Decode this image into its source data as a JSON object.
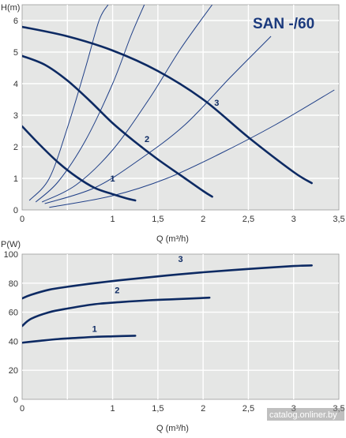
{
  "colors": {
    "plot_bg": "#e5e6e5",
    "grid": "#ffffff",
    "curve": "#0d2a63",
    "resistance": "#1f3f87",
    "text": "#333333",
    "title": "#1b3a7d"
  },
  "watermark": "catalog.onliner.by",
  "chart_data": [
    {
      "type": "line",
      "title": "SAN -/60",
      "ylabel": "H(m)",
      "xlabel": "Q (m³/h)",
      "xlim": [
        0,
        3.5
      ],
      "ylim": [
        0,
        6.5
      ],
      "xticks": [
        0,
        0.5,
        1,
        1.5,
        2,
        2.5,
        3,
        3.5
      ],
      "xtick_labels": [
        "0",
        "",
        "1",
        "1,5",
        "2",
        "2,5",
        "3",
        "3,5"
      ],
      "yticks": [
        0,
        1,
        2,
        3,
        4,
        5,
        6
      ],
      "ytick_labels": [
        "0",
        "1",
        "2",
        "3",
        "4",
        "5",
        "6"
      ],
      "grid": true,
      "series": [
        {
          "name": "1",
          "x": [
            0,
            0.2,
            0.4,
            0.6,
            0.8,
            1.0,
            1.15,
            1.25
          ],
          "y": [
            2.65,
            2.05,
            1.5,
            1.05,
            0.7,
            0.5,
            0.37,
            0.3
          ]
        },
        {
          "name": "2",
          "x": [
            0,
            0.25,
            0.5,
            0.75,
            1.0,
            1.25,
            1.5,
            1.75,
            2.0,
            2.1
          ],
          "y": [
            4.88,
            4.6,
            4.1,
            3.45,
            2.75,
            2.15,
            1.6,
            1.1,
            0.6,
            0.42
          ]
        },
        {
          "name": "3",
          "x": [
            0,
            0.5,
            1.0,
            1.5,
            2.0,
            2.5,
            3.0,
            3.2
          ],
          "y": [
            5.8,
            5.5,
            5.05,
            4.4,
            3.5,
            2.3,
            1.2,
            0.85
          ]
        }
      ],
      "resistance_curves": [
        {
          "x": [
            0.08,
            0.3,
            0.5,
            0.7,
            0.85,
            0.95
          ],
          "y": [
            0.3,
            1.0,
            2.6,
            4.5,
            6.0,
            6.5
          ]
        },
        {
          "x": [
            0.15,
            0.4,
            0.7,
            1.0,
            1.2,
            1.35
          ],
          "y": [
            0.25,
            0.9,
            2.2,
            4.0,
            5.5,
            6.5
          ]
        },
        {
          "x": [
            0.22,
            0.6,
            1.0,
            1.4,
            1.75,
            2.1
          ],
          "y": [
            0.25,
            0.8,
            1.9,
            3.5,
            5.1,
            6.5
          ]
        },
        {
          "x": [
            0.25,
            0.8,
            1.3,
            1.8,
            2.3,
            2.75
          ],
          "y": [
            0.2,
            0.7,
            1.6,
            2.7,
            4.2,
            5.5
          ]
        },
        {
          "x": [
            0.3,
            1.0,
            1.6,
            2.2,
            2.8,
            3.45
          ],
          "y": [
            0.08,
            0.45,
            1.0,
            1.8,
            2.7,
            3.8
          ]
        }
      ],
      "annotations": [
        {
          "text": "1",
          "x": 1.0,
          "y": 0.9
        },
        {
          "text": "2",
          "x": 1.38,
          "y": 2.15
        },
        {
          "text": "3",
          "x": 2.15,
          "y": 3.3
        }
      ]
    },
    {
      "type": "line",
      "ylabel": "P(W)",
      "xlabel": "Q (m³/h)",
      "xlim": [
        0,
        3.5
      ],
      "ylim": [
        0,
        100
      ],
      "xticks": [
        0,
        0.5,
        1,
        1.5,
        2,
        2.5,
        3,
        3.5
      ],
      "xtick_labels": [
        "0",
        "",
        "1",
        "1,5",
        "2",
        "2,5",
        "3",
        "3,5"
      ],
      "yticks": [
        0,
        20,
        40,
        60,
        80,
        100
      ],
      "ytick_labels": [
        "0",
        "20",
        "40",
        "60",
        "80",
        "100"
      ],
      "grid": true,
      "series": [
        {
          "name": "1",
          "x": [
            0,
            0.2,
            0.4,
            0.6,
            0.8,
            1.0,
            1.25
          ],
          "y": [
            39,
            40.3,
            41.5,
            42.3,
            43,
            43.4,
            43.8
          ]
        },
        {
          "name": "2",
          "x": [
            0,
            0.1,
            0.3,
            0.5,
            0.8,
            1.1,
            1.4,
            1.7,
            2.07
          ],
          "y": [
            50.5,
            55.5,
            60,
            62.5,
            65.5,
            67,
            68.2,
            69,
            70
          ]
        },
        {
          "name": "3",
          "x": [
            0,
            0.1,
            0.3,
            0.5,
            0.8,
            1.2,
            1.6,
            2.0,
            2.5,
            3.0,
            3.2
          ],
          "y": [
            69.5,
            72,
            75.5,
            77.5,
            80,
            82.8,
            85.3,
            87.5,
            89.8,
            91.8,
            92.2
          ]
        }
      ],
      "annotations": [
        {
          "text": "1",
          "x": 0.8,
          "y": 46.5
        },
        {
          "text": "2",
          "x": 1.05,
          "y": 73
        },
        {
          "text": "3",
          "x": 1.75,
          "y": 94.5
        }
      ]
    }
  ]
}
